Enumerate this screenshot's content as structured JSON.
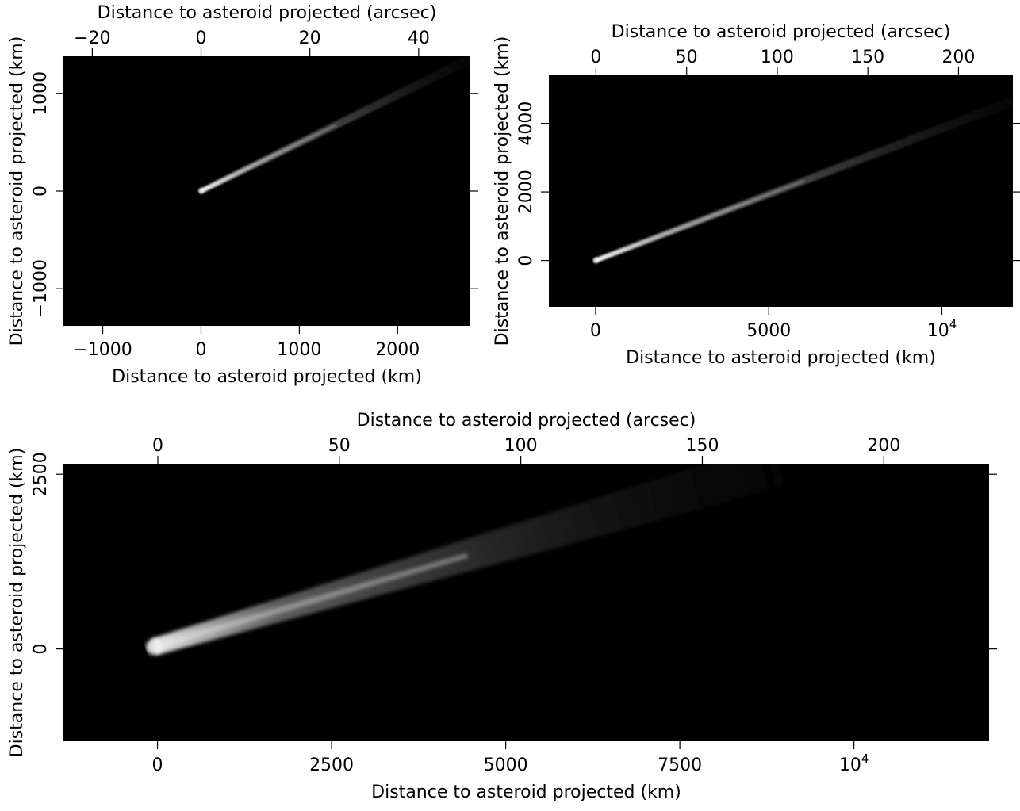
{
  "colors": {
    "background": "#000000",
    "streak": "#ffffff",
    "axis": "#000000",
    "page": "#ffffff"
  },
  "chart_data": [
    {
      "type": "heatmap",
      "xlabel": "Distance to asteroid projected (km)",
      "ylabel": "Distance to asteroid projected (km)",
      "x2label": "Distance to asteroid projected (arcsec)",
      "xlim": [
        -1400,
        2740
      ],
      "ylim": [
        -1380,
        1380
      ],
      "x2lim": [
        -25.3,
        49.5
      ],
      "xticks": [
        {
          "v": -1000,
          "t": "−1000"
        },
        {
          "v": 0,
          "t": "0"
        },
        {
          "v": 1000,
          "t": "1000"
        },
        {
          "v": 2000,
          "t": "2000"
        }
      ],
      "yticks": [
        {
          "v": -1000,
          "t": "−1000"
        },
        {
          "v": 0,
          "t": "0"
        },
        {
          "v": 1000,
          "t": "1000"
        }
      ],
      "x2ticks": [
        {
          "v": -20,
          "t": "−20"
        },
        {
          "v": 0,
          "t": "0"
        },
        {
          "v": 20,
          "t": "20"
        },
        {
          "v": 40,
          "t": "40"
        }
      ],
      "streak": {
        "start": [
          0,
          0
        ],
        "end": [
          2740,
          1350
        ]
      },
      "grid": false
    },
    {
      "type": "heatmap",
      "xlabel": "Distance to asteroid projected (km)",
      "ylabel": "Distance to asteroid projected (km)",
      "x2label": "Distance to asteroid projected (arcsec)",
      "xlim": [
        -1350,
        12050
      ],
      "ylim": [
        -1350,
        5400
      ],
      "x2lim": [
        -26,
        230
      ],
      "xticks": [
        {
          "v": 0,
          "t": "0"
        },
        {
          "v": 5000,
          "t": "5000"
        },
        {
          "v": 10000,
          "t": "10",
          "sup": "4"
        }
      ],
      "yticks": [
        {
          "v": 0,
          "t": "0"
        },
        {
          "v": 2000,
          "t": "2000"
        },
        {
          "v": 4000,
          "t": "4000"
        }
      ],
      "x2ticks": [
        {
          "v": 0,
          "t": "0"
        },
        {
          "v": 50,
          "t": "50"
        },
        {
          "v": 100,
          "t": "100"
        },
        {
          "v": 150,
          "t": "150"
        },
        {
          "v": 200,
          "t": "200"
        }
      ],
      "streak": {
        "start": [
          0,
          0
        ],
        "end": [
          12050,
          4650
        ]
      },
      "grid": false
    },
    {
      "type": "heatmap",
      "xlabel": "Distance to asteroid projected (km)",
      "ylabel": "Distance to asteroid projected (km)",
      "x2label": "Distance to asteroid projected (arcsec)",
      "xlim": [
        -1350,
        11940
      ],
      "ylim": [
        -1320,
        2650
      ],
      "x2lim": [
        -26,
        229
      ],
      "xticks": [
        {
          "v": 0,
          "t": "0"
        },
        {
          "v": 2500,
          "t": "2500"
        },
        {
          "v": 5000,
          "t": "5000"
        },
        {
          "v": 7500,
          "t": "7500"
        },
        {
          "v": 10000,
          "t": "10",
          "sup": "4"
        }
      ],
      "yticks": [
        {
          "v": 0,
          "t": "0"
        },
        {
          "v": 2500,
          "t": "2500"
        }
      ],
      "x2ticks": [
        {
          "v": 0,
          "t": "0"
        },
        {
          "v": 50,
          "t": "50"
        },
        {
          "v": 100,
          "t": "100"
        },
        {
          "v": 150,
          "t": "150"
        },
        {
          "v": 200,
          "t": "200"
        }
      ],
      "streak": {
        "start": [
          -50,
          30
        ],
        "end": [
          8950,
          2650
        ]
      },
      "grid": false
    }
  ]
}
